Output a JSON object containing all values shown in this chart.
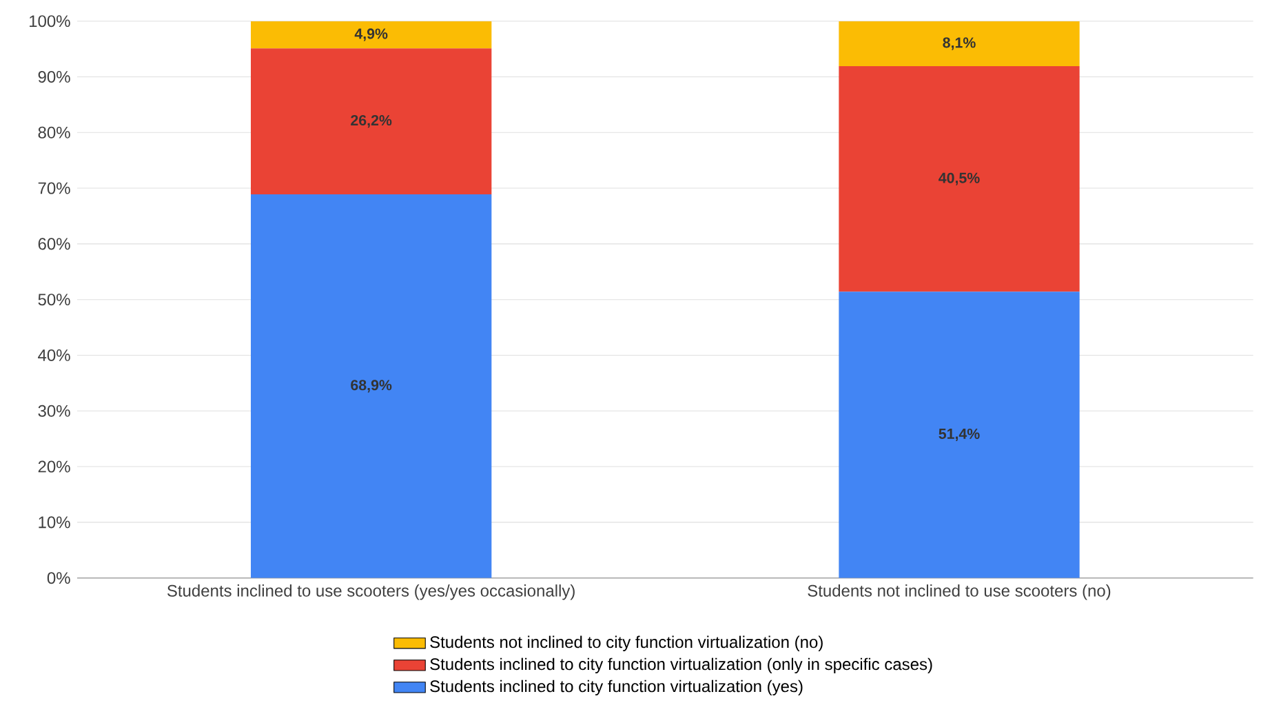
{
  "chart_data": {
    "type": "bar",
    "stacked": true,
    "categories": [
      "Students inclined to use scooters (yes/yes occasionally)",
      "Students not inclined to use scooters (no)"
    ],
    "series": [
      {
        "name": "Students inclined to city function virtualization (yes)",
        "color": "#4285f4",
        "values": [
          68.9,
          51.4
        ],
        "value_labels": [
          "68,9%",
          "51,4%"
        ]
      },
      {
        "name": "Students inclined to city function virtualization (only in specific cases)",
        "color": "#ea4335",
        "values": [
          26.2,
          40.5
        ],
        "value_labels": [
          "26,2%",
          "40,5%"
        ]
      },
      {
        "name": "Students not inclined to city function virtualization (no)",
        "color": "#fbbc04",
        "values": [
          4.9,
          8.1
        ],
        "value_labels": [
          "4,9%",
          "8,1%"
        ]
      }
    ],
    "ylim": [
      0,
      100
    ],
    "yticks": [
      {
        "value": 0,
        "label": "0%"
      },
      {
        "value": 10,
        "label": "10%"
      },
      {
        "value": 20,
        "label": "20%"
      },
      {
        "value": 30,
        "label": "30%"
      },
      {
        "value": 40,
        "label": "40%"
      },
      {
        "value": 50,
        "label": "50%"
      },
      {
        "value": 60,
        "label": "60%"
      },
      {
        "value": 70,
        "label": "70%"
      },
      {
        "value": 80,
        "label": "80%"
      },
      {
        "value": 90,
        "label": "90%"
      },
      {
        "value": 100,
        "label": "100%"
      }
    ],
    "grid": "y",
    "legend": "bottom"
  }
}
